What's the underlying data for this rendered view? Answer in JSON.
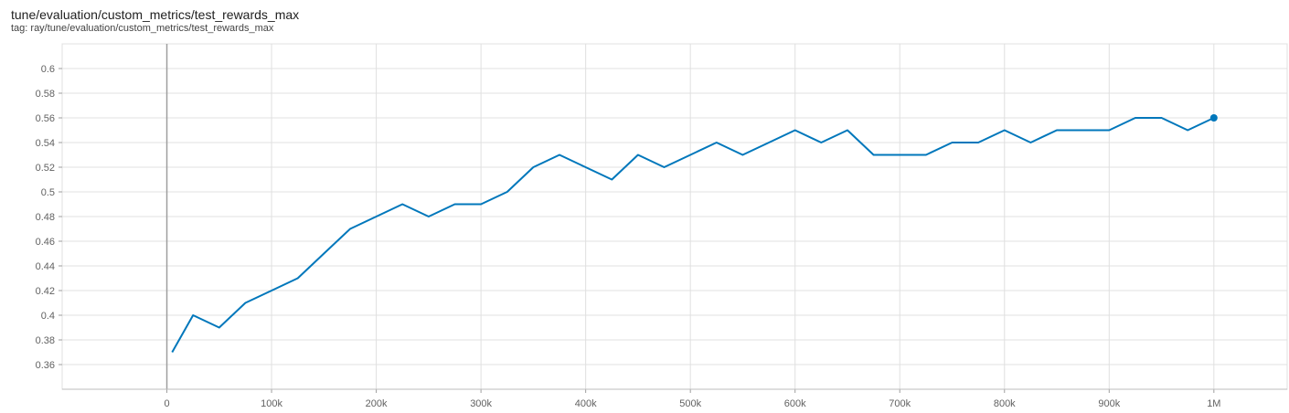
{
  "header": {
    "title": "tune/evaluation/custom_metrics/test_rewards_max",
    "tag": "tag: ray/tune/evaluation/custom_metrics/test_rewards_max"
  },
  "chart_data": {
    "type": "line",
    "title": "tune/evaluation/custom_metrics/test_rewards_max",
    "xlabel": "",
    "ylabel": "",
    "xlim": [
      -100000,
      1070000
    ],
    "ylim": [
      0.34,
      0.62
    ],
    "x_ticks": [
      0,
      100000,
      200000,
      300000,
      400000,
      500000,
      600000,
      700000,
      800000,
      900000,
      1000000
    ],
    "x_tick_labels": [
      "0",
      "100k",
      "200k",
      "300k",
      "400k",
      "500k",
      "600k",
      "700k",
      "800k",
      "900k",
      "1M"
    ],
    "y_ticks": [
      0.36,
      0.38,
      0.4,
      0.42,
      0.44,
      0.46,
      0.48,
      0.5,
      0.52,
      0.54,
      0.56,
      0.58,
      0.6
    ],
    "y_tick_labels": [
      "0.36",
      "0.38",
      "0.4",
      "0.42",
      "0.44",
      "0.46",
      "0.48",
      "0.5",
      "0.52",
      "0.54",
      "0.56",
      "0.58",
      "0.6"
    ],
    "grid": true,
    "legend": "none",
    "colors": {
      "smoothed": "#0077bb",
      "raw": "#a6d4e8",
      "zero_line": "#9e9e9e"
    },
    "series": [
      {
        "style": "raw",
        "x": [
          5000,
          25000,
          50000,
          75000,
          100000,
          125000,
          150000,
          175000,
          200000,
          225000,
          250000,
          275000,
          300000,
          325000,
          350000,
          375000,
          400000,
          425000,
          450000,
          475000,
          500000,
          525000,
          550000,
          575000,
          600000,
          625000,
          650000,
          675000,
          700000,
          725000,
          750000,
          775000,
          800000,
          825000,
          850000,
          875000,
          900000,
          925000,
          950000,
          975000,
          1000000
        ],
        "y": [
          0.37,
          0.4,
          0.39,
          0.41,
          0.42,
          0.43,
          0.45,
          0.47,
          0.48,
          0.49,
          0.48,
          0.49,
          0.49,
          0.5,
          0.52,
          0.53,
          0.52,
          0.51,
          0.53,
          0.52,
          0.53,
          0.54,
          0.53,
          0.54,
          0.55,
          0.54,
          0.55,
          0.53,
          0.53,
          0.53,
          0.54,
          0.54,
          0.55,
          0.54,
          0.55,
          0.55,
          0.55,
          0.56,
          0.56,
          0.55,
          0.56
        ]
      },
      {
        "style": "smoothed",
        "x": [
          5000,
          25000,
          50000,
          75000,
          100000,
          125000,
          150000,
          175000,
          200000,
          225000,
          250000,
          275000,
          300000,
          325000,
          350000,
          375000,
          400000,
          425000,
          450000,
          475000,
          500000,
          525000,
          550000,
          575000,
          600000,
          625000,
          650000,
          675000,
          700000,
          725000,
          750000,
          775000,
          800000,
          825000,
          850000,
          875000,
          900000,
          925000,
          950000,
          975000,
          1000000
        ],
        "y": [
          0.37,
          0.4,
          0.39,
          0.41,
          0.42,
          0.43,
          0.45,
          0.47,
          0.48,
          0.49,
          0.48,
          0.49,
          0.49,
          0.5,
          0.52,
          0.53,
          0.52,
          0.51,
          0.53,
          0.52,
          0.53,
          0.54,
          0.53,
          0.54,
          0.55,
          0.54,
          0.55,
          0.53,
          0.53,
          0.53,
          0.54,
          0.54,
          0.55,
          0.54,
          0.55,
          0.55,
          0.55,
          0.56,
          0.56,
          0.55,
          0.56
        ]
      }
    ],
    "last_point": {
      "x": 1000000,
      "y": 0.56
    }
  }
}
